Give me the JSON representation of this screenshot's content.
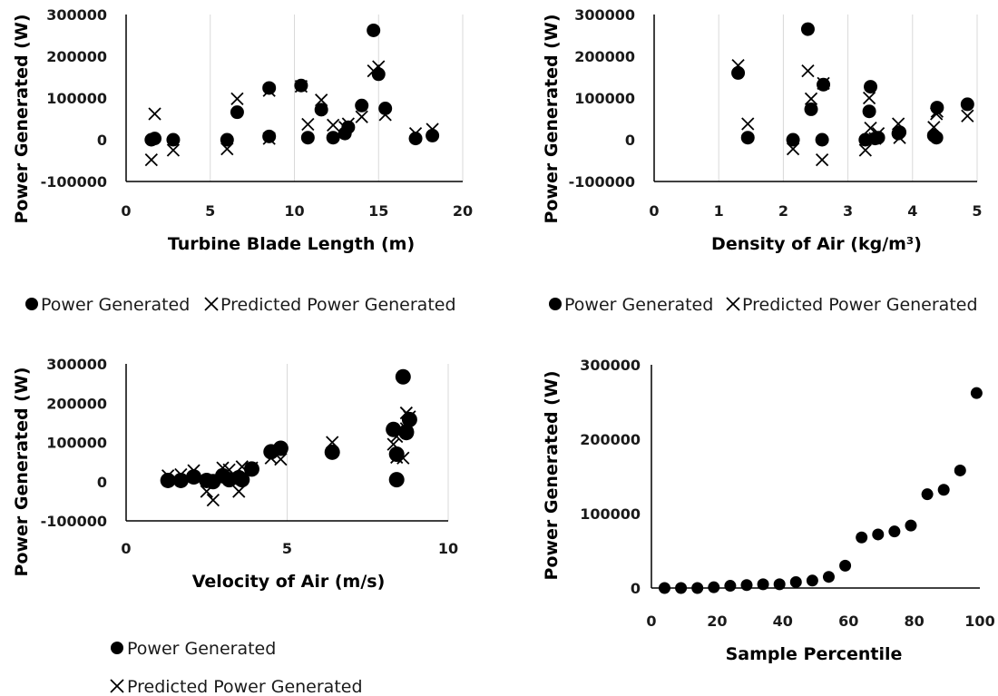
{
  "colors": {
    "marker": "#000000",
    "grid": "#d9d9d9"
  },
  "chart_data": [
    {
      "id": "blade",
      "type": "scatter",
      "xlabel": "Turbine Blade Length (m)",
      "ylabel": "Power Generated  (W)",
      "xlim": [
        0,
        20
      ],
      "ylim": [
        -100000,
        300000
      ],
      "xticks": [
        0,
        5,
        10,
        15,
        20
      ],
      "yticks": [
        -100000,
        0,
        100000,
        200000,
        300000
      ],
      "xtick_labels": [
        "0",
        "5",
        "10",
        "15",
        "20"
      ],
      "ytick_labels": [
        "-100000",
        "0",
        "100000",
        "200000",
        "300000"
      ],
      "grid": "vertical",
      "legend": "bottom",
      "series": [
        {
          "name": "Power Generated",
          "marker": "circle",
          "x": [
            1.5,
            1.7,
            2.8,
            6.0,
            6.6,
            8.5,
            8.5,
            10.4,
            10.8,
            11.6,
            12.3,
            13.0,
            13.2,
            14.0,
            14.7,
            15.0,
            15.4,
            17.2,
            18.2
          ],
          "y": [
            0,
            3000,
            0,
            0,
            66000,
            124000,
            8000,
            130000,
            5000,
            72000,
            5000,
            15000,
            30000,
            82000,
            262000,
            157000,
            75000,
            3000,
            10000
          ]
        },
        {
          "name": "Predicted Power Generated",
          "marker": "x",
          "x": [
            1.5,
            1.7,
            2.8,
            6.0,
            6.6,
            8.5,
            8.5,
            10.4,
            10.8,
            11.6,
            12.3,
            13.0,
            13.2,
            14.0,
            14.7,
            15.0,
            15.4,
            17.2,
            18.2
          ],
          "y": [
            -48000,
            62000,
            -25000,
            -22000,
            98000,
            118000,
            3000,
            128000,
            37000,
            95000,
            35000,
            30000,
            38000,
            55000,
            165000,
            175000,
            60000,
            15000,
            25000
          ]
        }
      ]
    },
    {
      "id": "density",
      "type": "scatter",
      "xlabel": "Density of Air (kg/m³)",
      "ylabel": "Power Generated  (W)",
      "xlim": [
        0,
        5
      ],
      "ylim": [
        -100000,
        300000
      ],
      "xticks": [
        0,
        1,
        2,
        3,
        4,
        5
      ],
      "yticks": [
        -100000,
        0,
        100000,
        200000,
        300000
      ],
      "xtick_labels": [
        "0",
        "1",
        "2",
        "3",
        "4",
        "5"
      ],
      "ytick_labels": [
        "-100000",
        "0",
        "100000",
        "200000",
        "300000"
      ],
      "grid": "vertical",
      "legend": "bottom",
      "series": [
        {
          "name": "Power Generated",
          "marker": "circle",
          "x": [
            1.3,
            1.45,
            2.15,
            2.38,
            2.43,
            2.6,
            2.62,
            3.27,
            3.33,
            3.35,
            3.42,
            3.47,
            3.78,
            3.8,
            4.33,
            4.37,
            4.38,
            4.85
          ],
          "y": [
            160000,
            5000,
            0,
            265000,
            73000,
            0,
            132000,
            0,
            68000,
            127000,
            3000,
            5000,
            15000,
            18000,
            10000,
            5000,
            77000,
            85000
          ]
        },
        {
          "name": "Predicted Power Generated",
          "marker": "x",
          "x": [
            1.3,
            1.45,
            2.15,
            2.38,
            2.43,
            2.6,
            2.62,
            3.27,
            3.33,
            3.35,
            3.42,
            3.47,
            3.78,
            3.8,
            4.33,
            4.37,
            4.38,
            4.85
          ],
          "y": [
            178000,
            38000,
            -22000,
            165000,
            98000,
            -48000,
            135000,
            -25000,
            100000,
            28000,
            3000,
            15000,
            38000,
            5000,
            30000,
            62000,
            68000,
            57000
          ]
        }
      ]
    },
    {
      "id": "velocity",
      "type": "scatter",
      "xlabel": "Velocity of Air  (m/s)",
      "ylabel": "Power Generated (W)",
      "xlim": [
        0,
        10
      ],
      "ylim": [
        -100000,
        300000
      ],
      "xticks": [
        0,
        5,
        10
      ],
      "yticks": [
        -100000,
        0,
        100000,
        200000,
        300000
      ],
      "xtick_labels": [
        "0",
        "5",
        "10"
      ],
      "ytick_labels": [
        "-100000",
        "0",
        "100000",
        "200000",
        "300000"
      ],
      "grid": "vertical",
      "legend": "bottom-left",
      "series": [
        {
          "name": "Power Generated",
          "marker": "circle",
          "x": [
            1.3,
            1.7,
            2.1,
            2.5,
            2.7,
            3.0,
            3.2,
            3.5,
            3.6,
            3.9,
            4.5,
            4.8,
            6.4,
            8.3,
            8.4,
            8.4,
            8.6,
            8.7,
            8.7,
            8.8
          ],
          "y": [
            3000,
            3000,
            12000,
            3000,
            0,
            15000,
            5000,
            10000,
            5000,
            32000,
            76000,
            85000,
            75000,
            133000,
            70000,
            5000,
            267000,
            125000,
            127000,
            158000
          ]
        },
        {
          "name": "Predicted Power Generated",
          "marker": "x",
          "x": [
            1.3,
            1.7,
            2.1,
            2.5,
            2.7,
            3.0,
            3.2,
            3.5,
            3.6,
            3.9,
            4.5,
            4.8,
            6.4,
            8.3,
            8.4,
            8.4,
            8.6,
            8.7,
            8.7,
            8.8
          ],
          "y": [
            15000,
            18000,
            28000,
            -25000,
            -47000,
            35000,
            30000,
            -25000,
            38000,
            35000,
            60000,
            57000,
            100000,
            95000,
            62000,
            115000,
            60000,
            135000,
            175000,
            165000
          ]
        }
      ]
    },
    {
      "id": "percentile",
      "type": "scatter",
      "xlabel": "Sample Percentile",
      "ylabel": "Power Generated  (W)",
      "xlim": [
        0,
        100
      ],
      "ylim": [
        0,
        300000
      ],
      "xticks": [
        0,
        20,
        40,
        60,
        80,
        100
      ],
      "yticks": [
        0,
        100000,
        200000,
        300000
      ],
      "xtick_labels": [
        "0",
        "20",
        "40",
        "60",
        "80",
        "100"
      ],
      "ytick_labels": [
        "0",
        "100000",
        "200000",
        "300000"
      ],
      "grid": "none",
      "legend": "none",
      "series": [
        {
          "name": "Power Generated",
          "marker": "circle",
          "x": [
            4,
            9,
            14,
            19,
            24,
            29,
            34,
            39,
            44,
            49,
            54,
            59,
            64,
            69,
            74,
            79,
            84,
            89,
            94,
            99
          ],
          "y": [
            0,
            0,
            0,
            1000,
            3000,
            4000,
            5000,
            5000,
            8000,
            10000,
            15000,
            30000,
            68000,
            72000,
            76000,
            84000,
            126000,
            132000,
            158000,
            262000
          ]
        }
      ]
    }
  ]
}
